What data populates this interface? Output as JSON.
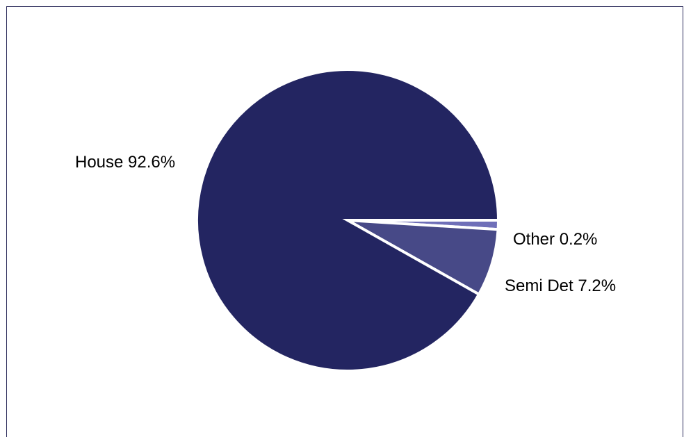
{
  "chart_data": {
    "type": "pie",
    "title": "",
    "start_angle_deg": 0,
    "direction": "clockwise",
    "slices": [
      {
        "name": "Other",
        "value": 0.2,
        "label": "Other 0.2%",
        "color": "#6f6fb8"
      },
      {
        "name": "Semi Det",
        "value": 7.2,
        "label": "Semi Det 7.2%",
        "color": "#474987"
      },
      {
        "name": "House",
        "value": 92.6,
        "label": "House 92.6%",
        "color": "#232561"
      }
    ],
    "slice_separator_color": "#ffffff",
    "legend": "none"
  }
}
